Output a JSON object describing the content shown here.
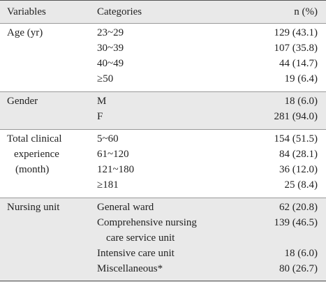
{
  "table": {
    "headers": [
      "Variables",
      "Categories",
      "n (%)"
    ],
    "groups": [
      {
        "variable": [
          "Age (yr)"
        ],
        "rows": [
          {
            "category": [
              "23~29"
            ],
            "n": "129 (43.1)"
          },
          {
            "category": [
              "30~39"
            ],
            "n": "107 (35.8)"
          },
          {
            "category": [
              "40~49"
            ],
            "n": "44 (14.7)"
          },
          {
            "category": [
              "≥50"
            ],
            "n": "19 (6.4)"
          }
        ]
      },
      {
        "variable": [
          "Gender"
        ],
        "rows": [
          {
            "category": [
              "M"
            ],
            "n": "18 (6.0)"
          },
          {
            "category": [
              "F"
            ],
            "n": "281 (94.0)"
          }
        ]
      },
      {
        "variable": [
          "Total clinical",
          "experience",
          "(month)"
        ],
        "rows": [
          {
            "category": [
              "5~60"
            ],
            "n": "154 (51.5)"
          },
          {
            "category": [
              "61~120"
            ],
            "n": "84 (28.1)"
          },
          {
            "category": [
              "121~180"
            ],
            "n": "36 (12.0)"
          },
          {
            "category": [
              "≥181"
            ],
            "n": "25 (8.4)"
          }
        ]
      },
      {
        "variable": [
          "Nursing unit"
        ],
        "rows": [
          {
            "category": [
              "General ward"
            ],
            "n": "62 (20.8)"
          },
          {
            "category": [
              "Comprehensive nursing",
              "care service unit"
            ],
            "n": "139 (46.5)"
          },
          {
            "category": [
              "Intensive care unit"
            ],
            "n": "18 (6.0)"
          },
          {
            "category": [
              "Miscellaneous*"
            ],
            "n": "80 (26.7)"
          }
        ]
      }
    ]
  }
}
